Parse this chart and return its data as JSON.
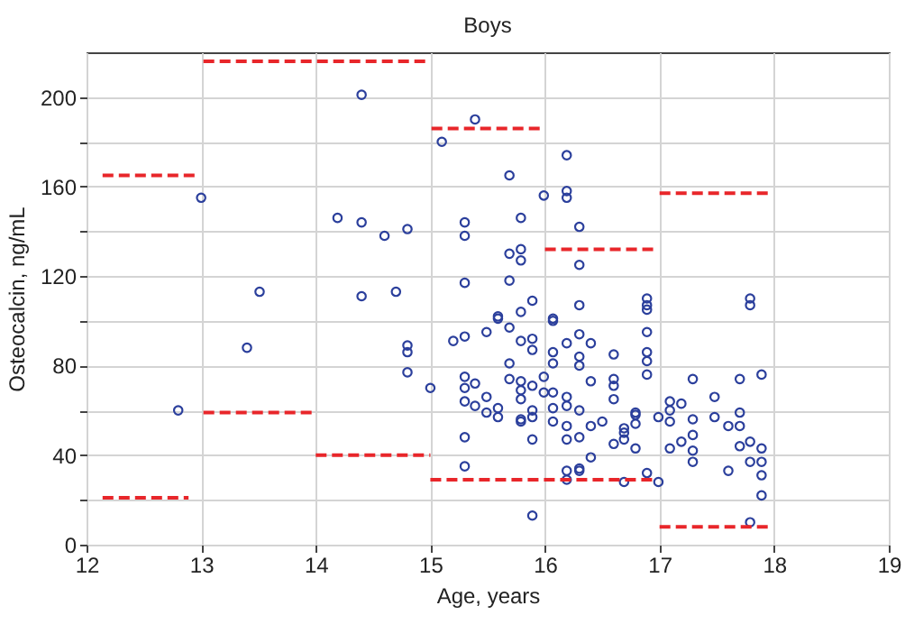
{
  "chart_data": {
    "type": "scatter",
    "title": "Boys",
    "xlabel": "Age, years",
    "ylabel": "Osteocalcin, ng/mL",
    "xlim": [
      12,
      19
    ],
    "xticks": [
      12,
      13,
      14,
      15,
      16,
      17,
      18,
      19
    ],
    "ylim": [
      0,
      220
    ],
    "yticks": [
      0,
      {
        "value": 20,
        "label": null
      },
      40,
      {
        "value": 60,
        "label": null
      },
      80,
      {
        "value": 100,
        "label": null
      },
      120,
      {
        "value": 140,
        "label": null
      },
      160,
      {
        "value": 180,
        "label": null
      },
      200
    ],
    "grid": true,
    "series": [
      {
        "color": "#2b3f9c",
        "marker": "circle",
        "x": [
          12.8,
          13.0,
          13.51,
          13.4,
          14.19,
          14.4,
          14.4,
          14.4,
          14.6,
          14.8,
          14.7,
          14.8,
          14.8,
          14.8,
          15.0,
          15.1,
          15.39,
          15.3,
          15.3,
          15.3,
          15.2,
          15.3,
          15.49,
          15.59,
          15.59,
          15.3,
          15.3,
          15.3,
          15.39,
          15.39,
          15.49,
          15.49,
          15.3,
          15.3,
          15.59,
          15.59,
          15.69,
          15.79,
          15.69,
          15.79,
          15.79,
          15.69,
          15.69,
          15.79,
          15.89,
          15.79,
          15.89,
          15.89,
          15.69,
          15.69,
          15.79,
          15.79,
          15.79,
          15.89,
          15.99,
          15.99,
          15.79,
          15.79,
          15.89,
          15.89,
          15.89,
          15.89,
          15.99,
          16.07,
          16.07,
          16.07,
          16.07,
          16.07,
          16.07,
          16.07,
          16.19,
          16.19,
          16.19,
          16.3,
          16.3,
          16.3,
          16.3,
          16.19,
          16.3,
          16.3,
          16.4,
          16.19,
          16.19,
          16.3,
          16.19,
          16.19,
          16.3,
          16.4,
          16.4,
          16.5,
          16.4,
          16.19,
          16.19,
          16.3,
          16.3,
          16.6,
          16.6,
          16.6,
          16.6,
          16.6,
          16.69,
          16.69,
          16.69,
          16.79,
          16.79,
          16.79,
          16.79,
          16.69,
          16.89,
          16.89,
          16.89,
          16.89,
          16.89,
          16.89,
          16.89,
          16.89,
          16.99,
          16.99,
          17.09,
          17.09,
          17.09,
          17.09,
          17.19,
          17.19,
          17.29,
          17.29,
          17.29,
          17.29,
          17.29,
          17.48,
          17.48,
          17.6,
          17.6,
          17.7,
          17.7,
          17.7,
          17.7,
          17.79,
          17.79,
          17.79,
          17.79,
          17.79,
          17.89,
          17.89,
          17.89,
          17.89,
          17.89
        ],
        "values": [
          60,
          155,
          113,
          88,
          146,
          144,
          201,
          111,
          138,
          141,
          113,
          89,
          86,
          77,
          70,
          180,
          190,
          144,
          138,
          117,
          91,
          93,
          95,
          102,
          101,
          75,
          70,
          64,
          72,
          62,
          66,
          59,
          48,
          35,
          61,
          57,
          165,
          146,
          130,
          132,
          127,
          118,
          97,
          104,
          109,
          91,
          92,
          87,
          81,
          74,
          73,
          69,
          65,
          71,
          75,
          68,
          56,
          55,
          60,
          57,
          47,
          13,
          156,
          101,
          100,
          86,
          81,
          68,
          61,
          55,
          174,
          158,
          155,
          142,
          125,
          107,
          94,
          90,
          84,
          80,
          90,
          66,
          62,
          60,
          53,
          47,
          48,
          73,
          53,
          55,
          39,
          33,
          29,
          34,
          33,
          85,
          74,
          71,
          65,
          45,
          52,
          50,
          47,
          59,
          58,
          54,
          43,
          28,
          110,
          107,
          105,
          95,
          86,
          82,
          76,
          32,
          28,
          57,
          64,
          60,
          55,
          43,
          63,
          46,
          74,
          56,
          49,
          42,
          37,
          66,
          57,
          53,
          33,
          74,
          59,
          53,
          44,
          110,
          107,
          46,
          37,
          10,
          76,
          43,
          37,
          31,
          22
        ]
      },
      {
        "type": "line",
        "color": "#e8262a",
        "line_style": "dashed",
        "x": [
          12.14,
          12.96
        ],
        "values": [
          165,
          165
        ]
      },
      {
        "type": "line",
        "color": "#e8262a",
        "line_style": "dashed",
        "x": [
          12.14,
          12.89
        ],
        "values": [
          21,
          21
        ]
      },
      {
        "type": "line",
        "color": "#e8262a",
        "line_style": "dashed",
        "x": [
          13.02,
          15.0
        ],
        "values": [
          216,
          216
        ]
      },
      {
        "type": "line",
        "color": "#e8262a",
        "line_style": "dashed",
        "x": [
          13.02,
          14.0
        ],
        "values": [
          59,
          59
        ]
      },
      {
        "type": "line",
        "color": "#e8262a",
        "line_style": "dashed",
        "x": [
          14.0,
          15.0
        ],
        "values": [
          40,
          40
        ]
      },
      {
        "type": "line",
        "color": "#e8262a",
        "line_style": "dashed",
        "x": [
          15.01,
          15.98
        ],
        "values": [
          186,
          186
        ]
      },
      {
        "type": "line",
        "color": "#e8262a",
        "line_style": "dashed",
        "x": [
          15.0,
          16.95
        ],
        "values": [
          29,
          29
        ]
      },
      {
        "type": "line",
        "color": "#e8262a",
        "line_style": "dashed",
        "x": [
          16.0,
          16.95
        ],
        "values": [
          132,
          132
        ]
      },
      {
        "type": "line",
        "color": "#e8262a",
        "line_style": "dashed",
        "x": [
          17.0,
          17.95
        ],
        "values": [
          157,
          157
        ]
      },
      {
        "type": "line",
        "color": "#e8262a",
        "line_style": "dashed",
        "x": [
          17.0,
          17.95
        ],
        "values": [
          8,
          8
        ]
      }
    ]
  }
}
